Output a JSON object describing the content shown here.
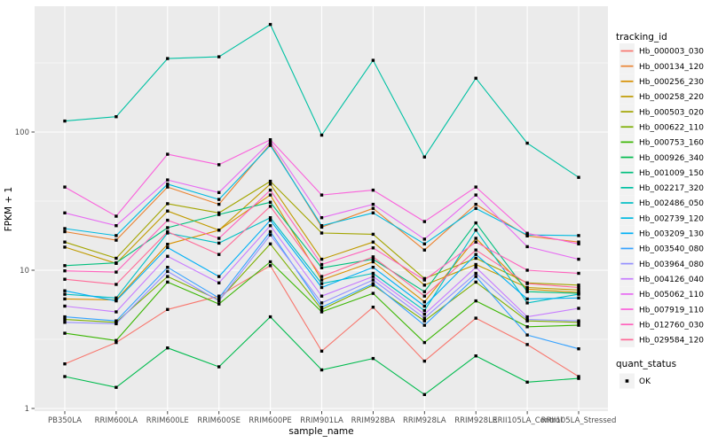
{
  "figure": {
    "y_axis_title": "FPKM + 1",
    "x_axis_title": "sample_name",
    "colors": {
      "panel_bg": "#EBEBEB",
      "grid": "#FFFFFF",
      "point": "#000000",
      "tick_text": "#4D4D4D",
      "legend_key_bg": "#F2F2F2"
    }
  },
  "chart_data": {
    "type": "line",
    "title": "",
    "xlabel": "sample_name",
    "ylabel": "FPKM + 1",
    "y_scale": "log10",
    "ylim": [
      1,
      780
    ],
    "y_ticks": [
      1,
      10,
      100
    ],
    "y_tick_labels": [
      "1",
      "10",
      "100"
    ],
    "y_minor_ticks": [
      3.1623,
      31.623,
      316.23
    ],
    "grid": true,
    "legend_position": "right",
    "legend_title": "tracking_id",
    "point_legend": {
      "title": "quant_status",
      "items": [
        "OK"
      ]
    },
    "x": [
      "PB350LA",
      "RRIM600LA",
      "RRIM600LE",
      "RRIM600SE",
      "RRIM600PE",
      "RRIM901LA",
      "RRIM928BA",
      "RRIM928LA",
      "RRIM928LE",
      "RRII105LA_Control",
      "RRII105LA_Stressed"
    ],
    "series": [
      {
        "name": "Hb_000003_030",
        "color": "#F8766D",
        "values": [
          2.1,
          3.0,
          5.2,
          6.5,
          10.8,
          2.6,
          5.4,
          2.2,
          4.5,
          2.9,
          1.7
        ]
      },
      {
        "name": "Hb_000134_120",
        "color": "#EA8331",
        "values": [
          19,
          16.5,
          40,
          30,
          82,
          20.5,
          28,
          14,
          30,
          17.7,
          16
        ]
      },
      {
        "name": "Hb_000256_230",
        "color": "#D89000",
        "values": [
          6.2,
          6.1,
          15.4,
          19.5,
          35,
          8.5,
          11.5,
          5.9,
          17,
          7.3,
          6.9
        ]
      },
      {
        "name": "Hb_000258_220",
        "color": "#C09B00",
        "values": [
          14.7,
          11.2,
          26.8,
          19.5,
          42,
          12,
          16,
          7.8,
          11,
          7.5,
          7.2
        ]
      },
      {
        "name": "Hb_000503_020",
        "color": "#A3A500",
        "values": [
          16,
          12.2,
          30.3,
          26,
          44,
          18.6,
          18.2,
          8.7,
          12.2,
          8.1,
          7.8
        ]
      },
      {
        "name": "Hb_000622_110",
        "color": "#7CAE00",
        "values": [
          4.4,
          4.2,
          9.0,
          6.1,
          15.5,
          5.2,
          7.8,
          4.3,
          8.2,
          4.3,
          4.2
        ]
      },
      {
        "name": "Hb_000753_160",
        "color": "#39B600",
        "values": [
          3.5,
          3.1,
          8.2,
          5.7,
          11.5,
          5.0,
          6.8,
          3.0,
          6.0,
          3.9,
          4.0
        ]
      },
      {
        "name": "Hb_000926_340",
        "color": "#00BB4E",
        "values": [
          1.7,
          1.42,
          2.74,
          2.0,
          4.6,
          1.9,
          2.3,
          1.26,
          2.4,
          1.55,
          1.65
        ]
      },
      {
        "name": "Hb_001009_150",
        "color": "#00BF7D",
        "values": [
          10.8,
          11.3,
          20.3,
          25.3,
          31,
          10.4,
          12.0,
          7.0,
          22,
          7.0,
          6.8
        ]
      },
      {
        "name": "Hb_002217_320",
        "color": "#00C1A3",
        "values": [
          120,
          129,
          340,
          350,
          600,
          95,
          330,
          66,
          245,
          83,
          47
        ]
      },
      {
        "name": "Hb_002486_050",
        "color": "#00BFC4",
        "values": [
          6.7,
          6.3,
          18.6,
          15.7,
          24,
          8.0,
          9.5,
          5.1,
          19.5,
          5.8,
          6.7
        ]
      },
      {
        "name": "Hb_002739_120",
        "color": "#00BAE0",
        "values": [
          20,
          17.8,
          42,
          32.5,
          80,
          21,
          26,
          15.5,
          28,
          18,
          17.8
        ]
      },
      {
        "name": "Hb_003209_130",
        "color": "#00B0F6",
        "values": [
          7.1,
          6.0,
          14.6,
          9.0,
          23,
          7.5,
          10.5,
          5.5,
          13,
          6.2,
          6.3
        ]
      },
      {
        "name": "Hb_003540_080",
        "color": "#35A2FF",
        "values": [
          4.6,
          4.3,
          10.5,
          6.3,
          19,
          5.4,
          8.0,
          4.0,
          9.0,
          3.4,
          2.7
        ]
      },
      {
        "name": "Hb_003964_080",
        "color": "#9590FF",
        "values": [
          4.2,
          4.1,
          9.8,
          6.0,
          18,
          5.8,
          8.5,
          4.5,
          9.5,
          4.4,
          4.3
        ]
      },
      {
        "name": "Hb_004126_040",
        "color": "#C77CFF",
        "values": [
          5.5,
          5.0,
          12.6,
          8.1,
          21,
          6.5,
          9.0,
          4.8,
          10.5,
          4.6,
          5.3
        ]
      },
      {
        "name": "Hb_005062_110",
        "color": "#E76BF3",
        "values": [
          26,
          21,
          45,
          36.5,
          85,
          24,
          30,
          16.8,
          35,
          14.8,
          12
        ]
      },
      {
        "name": "Hb_007919_110",
        "color": "#FA62DB",
        "values": [
          40,
          24.6,
          69,
          58,
          88,
          35,
          38,
          22.5,
          40,
          18.5,
          15.5
        ]
      },
      {
        "name": "Hb_012760_030",
        "color": "#FF62BC",
        "values": [
          9.9,
          9.7,
          23,
          17,
          38,
          11,
          14.5,
          8.5,
          16,
          10,
          9.5
        ]
      },
      {
        "name": "Hb_029584_120",
        "color": "#FF6A98",
        "values": [
          8.6,
          7.9,
          19,
          13,
          29,
          9.0,
          12.5,
          6.5,
          14,
          8.0,
          7.5
        ]
      }
    ]
  }
}
